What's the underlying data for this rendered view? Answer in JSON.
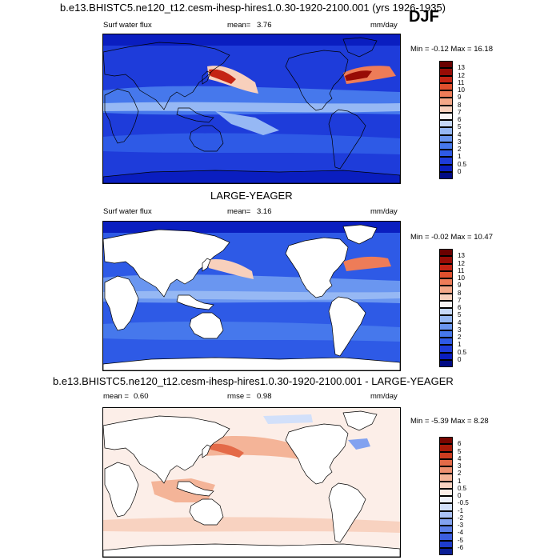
{
  "page": {
    "main_title": "b.e13.BHISTC5.ne120_t12.cesm-ihesp-hires1.0.30-1920-2100.001 (yrs 1926-1935)",
    "season": "DJF"
  },
  "chart_data": [
    {
      "type": "heatmap",
      "title": "",
      "left_label": "Surf water flux",
      "stat_label": "mean=",
      "stat_value": "3.76",
      "units": "mm/day",
      "min_max": "Min =  -0.12 Max =  16.18",
      "land_masked": false,
      "colorbar": {
        "levels": [
          "0",
          "0.5",
          "1",
          "2",
          "3",
          "4",
          "5",
          "6",
          "7",
          "8",
          "9",
          "10",
          "11",
          "12",
          "13"
        ],
        "colors": [
          "#000a84",
          "#0a1ec0",
          "#1e3cda",
          "#2e5ae6",
          "#4678ec",
          "#6a96f0",
          "#96b8f4",
          "#c6d8f8",
          "#f8f4f4",
          "#f8d0bc",
          "#f4a888",
          "#ee7c58",
          "#e0502e",
          "#c42414",
          "#980c06",
          "#6a0000"
        ]
      }
    },
    {
      "type": "heatmap",
      "title": "LARGE-YEAGER",
      "left_label": "Surf water flux",
      "stat_label": "mean=",
      "stat_value": "3.16",
      "units": "mm/day",
      "min_max": "Min =  -0.02 Max =  10.47",
      "land_masked": true,
      "colorbar": {
        "levels": [
          "0",
          "0.5",
          "1",
          "2",
          "3",
          "4",
          "5",
          "6",
          "7",
          "8",
          "9",
          "10",
          "11",
          "12",
          "13"
        ],
        "colors": [
          "#000a84",
          "#0a1ec0",
          "#1e3cda",
          "#2e5ae6",
          "#4678ec",
          "#6a96f0",
          "#96b8f4",
          "#c6d8f8",
          "#f8f4f4",
          "#f8d0bc",
          "#f4a888",
          "#ee7c58",
          "#e0502e",
          "#c42414",
          "#980c06",
          "#6a0000"
        ]
      }
    },
    {
      "type": "heatmap",
      "title": "b.e13.BHISTC5.ne120_t12.cesm-ihesp-hires1.0.30-1920-2100.001 - LARGE-YEAGER",
      "left_label": "mean =",
      "left_value": "0.60",
      "stat_label": "rmse =",
      "stat_value": "0.98",
      "units": "mm/day",
      "min_max": "Min =  -5.39 Max =   8.28",
      "land_masked": true,
      "colorbar": {
        "levels": [
          "-6",
          "-5",
          "-4",
          "-3",
          "-2",
          "-1",
          "-0.5",
          "0",
          "0.5",
          "1",
          "2",
          "3",
          "4",
          "5",
          "6"
        ],
        "colors": [
          "#0a1e96",
          "#1e3ccc",
          "#3c5ee0",
          "#5c80ea",
          "#82a2f0",
          "#aac2f6",
          "#d2e0fa",
          "#eef2fc",
          "#fceee8",
          "#f8d2c0",
          "#f4b498",
          "#ee9070",
          "#e46a48",
          "#cc3c20",
          "#a81a08",
          "#780600"
        ]
      }
    }
  ]
}
